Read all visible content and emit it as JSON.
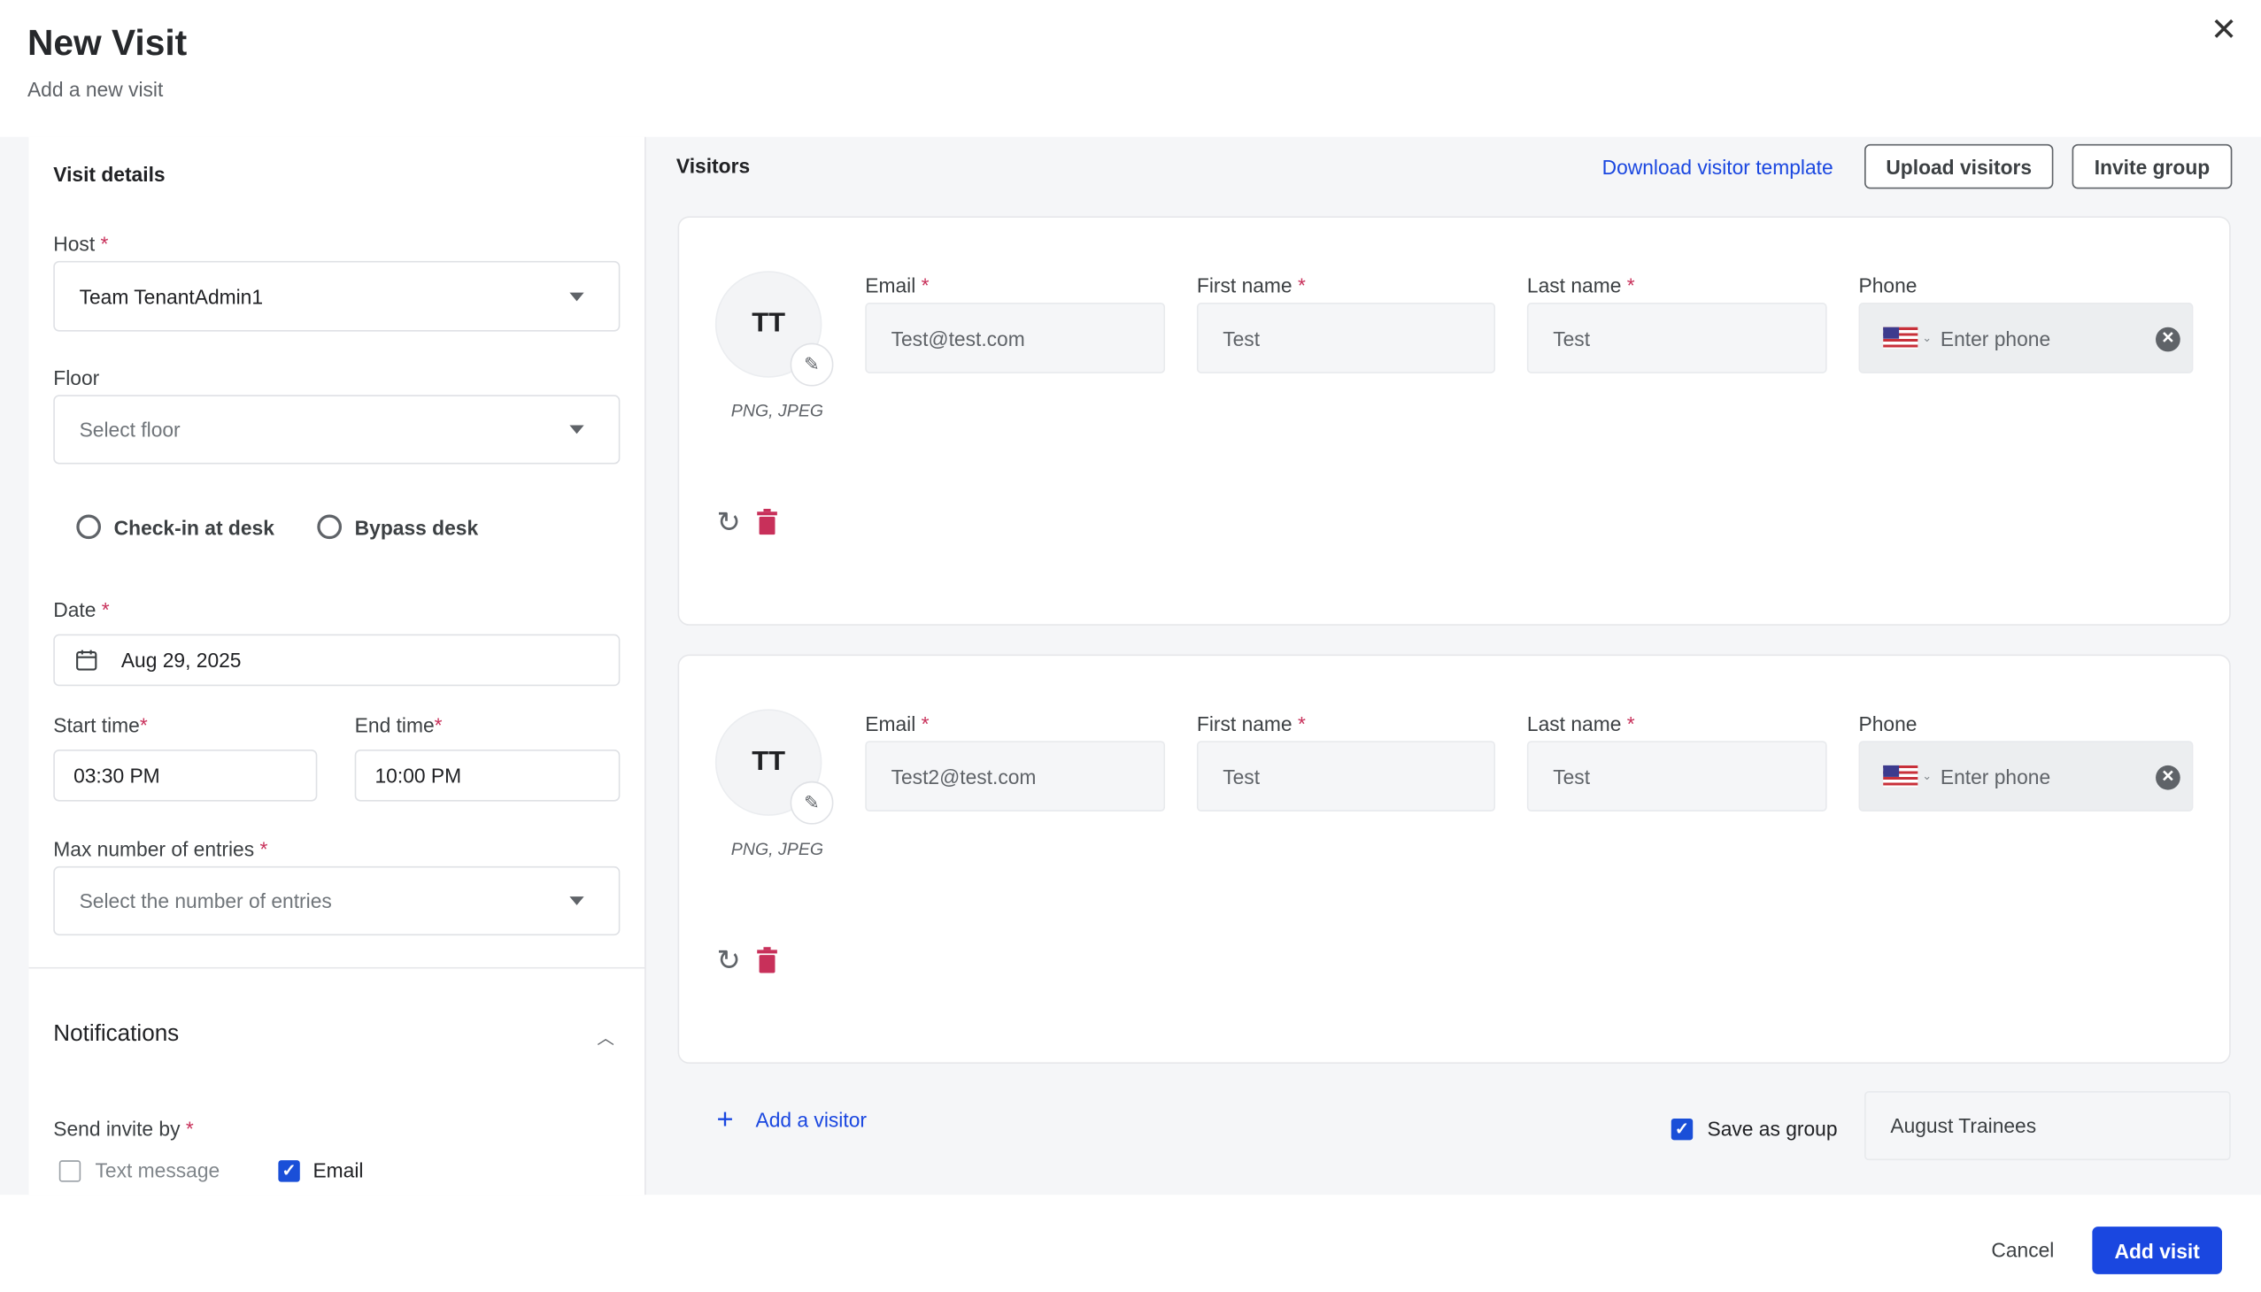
{
  "header": {
    "title": "New Visit",
    "subtitle": "Add a new visit",
    "close_icon": "close-icon"
  },
  "visit_details": {
    "heading": "Visit details",
    "host": {
      "label": "Host",
      "required": "*",
      "value": "Team TenantAdmin1"
    },
    "floor": {
      "label": "Floor",
      "placeholder": "Select floor"
    },
    "desk_options": [
      {
        "label": "Check-in at desk",
        "selected": false
      },
      {
        "label": "Bypass desk",
        "selected": false
      }
    ],
    "date": {
      "label": "Date",
      "required": "*",
      "value": "Aug 29, 2025"
    },
    "start_time": {
      "label": "Start time",
      "required": "*",
      "value": "03:30 PM"
    },
    "end_time": {
      "label": "End time",
      "required": "*",
      "value": "10:00 PM"
    },
    "max_entries": {
      "label": "Max number of entries",
      "required": "*",
      "placeholder": "Select the number of entries"
    }
  },
  "notifications": {
    "heading": "Notifications",
    "send_invite_label": "Send invite by",
    "required": "*",
    "options": [
      {
        "label": "Text message",
        "checked": false
      },
      {
        "label": "Email",
        "checked": true
      }
    ]
  },
  "visitors": {
    "heading": "Visitors",
    "download_template": "Download visitor template",
    "upload_button": "Upload visitors",
    "invite_group_button": "Invite group",
    "field_labels": {
      "email": "Email",
      "first_name": "First name",
      "last_name": "Last name",
      "phone": "Phone",
      "required": "*"
    },
    "list": [
      {
        "initials": "TT",
        "formats": "PNG, JPEG",
        "email": "Test@test.com",
        "first_name": "Test",
        "last_name": "Test",
        "phone_placeholder": "Enter phone"
      },
      {
        "initials": "TT",
        "formats": "PNG, JPEG",
        "email": "Test2@test.com",
        "first_name": "Test",
        "last_name": "Test",
        "phone_placeholder": "Enter phone"
      }
    ],
    "add_visitor": "Add a visitor",
    "save_as_group": {
      "label": "Save as group",
      "checked": true
    },
    "group_name": "August Trainees"
  },
  "footer": {
    "cancel": "Cancel",
    "add_visit": "Add visit"
  },
  "colors": {
    "primary": "#1a47e0",
    "required": "#c8305a",
    "delete": "#c8305a"
  }
}
